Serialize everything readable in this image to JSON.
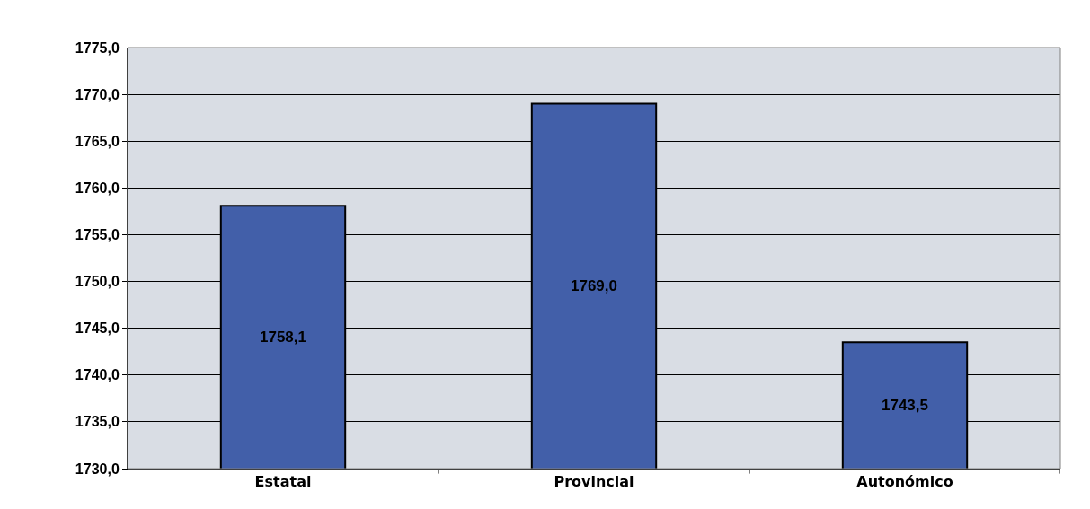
{
  "chart_data": {
    "type": "bar",
    "categories": [
      "Estatal",
      "Provincial",
      "Autonómico"
    ],
    "values": [
      1758.1,
      1769.0,
      1743.5
    ],
    "value_labels": [
      "1758,1",
      "1769,0",
      "1743,5"
    ],
    "color": "#425fa9",
    "ylim": [
      1730,
      1775
    ],
    "yticks": [
      {
        "value": 1730,
        "label": "1730,0"
      },
      {
        "value": 1735,
        "label": "1735,0"
      },
      {
        "value": 1740,
        "label": "1740,0"
      },
      {
        "value": 1745,
        "label": "1745,0"
      },
      {
        "value": 1750,
        "label": "1750,0"
      },
      {
        "value": 1755,
        "label": "1755,0"
      },
      {
        "value": 1760,
        "label": "1760,0"
      },
      {
        "value": 1765,
        "label": "1765,0"
      },
      {
        "value": 1770,
        "label": "1770,0"
      },
      {
        "value": 1775,
        "label": "1775,0"
      }
    ],
    "grid": "y",
    "legend": false
  }
}
